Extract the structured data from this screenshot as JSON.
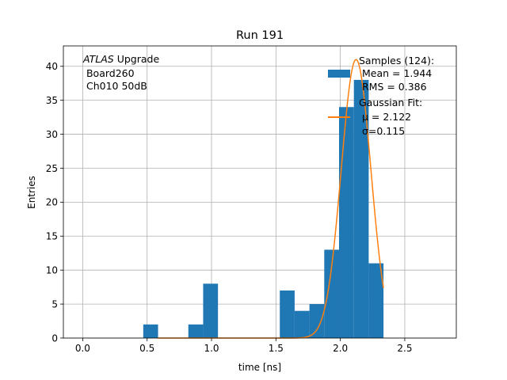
{
  "chart_data": {
    "type": "bar",
    "title": "Run 191",
    "xlabel": "time [ns]",
    "ylabel": "Entries",
    "xlim": [
      -0.15,
      2.9
    ],
    "ylim": [
      0,
      43
    ],
    "grid": true,
    "xticks": [
      0.0,
      0.5,
      1.0,
      1.5,
      2.0,
      2.5
    ],
    "xtick_labels": [
      "0.0",
      "0.5",
      "1.0",
      "1.5",
      "2.0",
      "2.5"
    ],
    "yticks": [
      0,
      5,
      10,
      15,
      20,
      25,
      30,
      35,
      40
    ],
    "ytick_labels": [
      "0",
      "5",
      "10",
      "15",
      "20",
      "25",
      "30",
      "35",
      "40"
    ],
    "histogram": {
      "color": "#1f77b4",
      "bins": [
        {
          "x0": 0.47,
          "x1": 0.585,
          "count": 2
        },
        {
          "x0": 0.82,
          "x1": 0.935,
          "count": 2
        },
        {
          "x0": 0.935,
          "x1": 1.05,
          "count": 8
        },
        {
          "x0": 1.53,
          "x1": 1.645,
          "count": 7
        },
        {
          "x0": 1.645,
          "x1": 1.76,
          "count": 4
        },
        {
          "x0": 1.76,
          "x1": 1.875,
          "count": 5
        },
        {
          "x0": 1.875,
          "x1": 1.99,
          "count": 13
        },
        {
          "x0": 1.99,
          "x1": 2.105,
          "count": 34
        },
        {
          "x0": 2.105,
          "x1": 2.22,
          "count": 38
        },
        {
          "x0": 2.22,
          "x1": 2.335,
          "count": 11
        }
      ]
    },
    "gaussian_fit": {
      "color": "#ff7f0e",
      "mu": 2.122,
      "sigma": 0.115,
      "amplitude": 41,
      "x_range": [
        0.58,
        2.335
      ]
    },
    "annotation": {
      "italic": "ATLAS",
      "line1_rest": " Upgrade",
      "line2": " Board260",
      "line3": " Ch010 50dB"
    },
    "legend": {
      "position": "top-right",
      "entries": [
        {
          "label_lines": [
            "Samples (124):",
            " Mean = 1.944",
            " RMS = 0.386"
          ],
          "kind": "patch",
          "color": "#1f77b4"
        },
        {
          "label_lines": [
            "Gaussian Fit:",
            " μ = 2.122",
            " σ=0.115"
          ],
          "kind": "line",
          "color": "#ff7f0e"
        }
      ]
    }
  }
}
